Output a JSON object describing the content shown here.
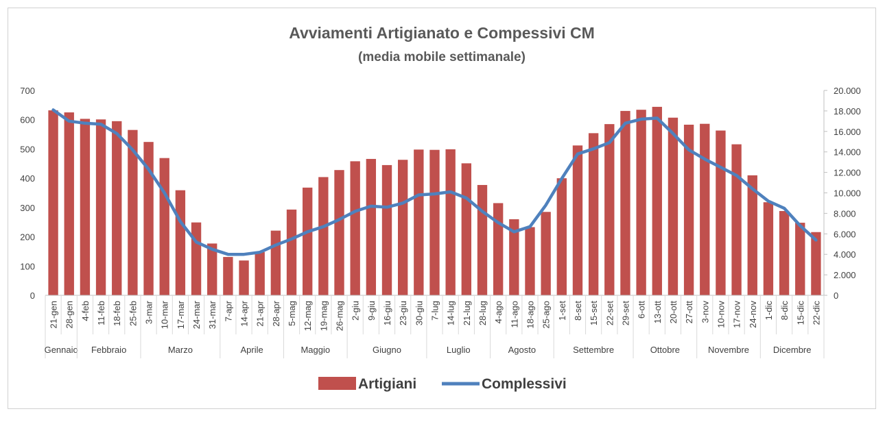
{
  "chart_data": {
    "type": "bar+line",
    "title": "Avviamenti Artigianato e Compessivi CM",
    "subtitle": "(media mobile settimanale)",
    "categories": [
      "21-gen",
      "28-gen",
      "4-feb",
      "11-feb",
      "18-feb",
      "25-feb",
      "3-mar",
      "10-mar",
      "17-mar",
      "24-mar",
      "31-mar",
      "7-apr",
      "14-apr",
      "21-apr",
      "28-apr",
      "5-mag",
      "12-mag",
      "19-mag",
      "26-mag",
      "2-giu",
      "9-giu",
      "16-giu",
      "23-giu",
      "30-giu",
      "7-lug",
      "14-lug",
      "21-lug",
      "28-lug",
      "4-ago",
      "11-ago",
      "18-ago",
      "25-ago",
      "1-set",
      "8-set",
      "15-set",
      "22-set",
      "29-set",
      "6-ott",
      "13-ott",
      "20-ott",
      "27-ott",
      "3-nov",
      "10-nov",
      "17-nov",
      "24-nov",
      "1-dic",
      "8-dic",
      "15-dic",
      "22-dic"
    ],
    "months": [
      {
        "name": "Gennaio",
        "start": 0,
        "end": 1
      },
      {
        "name": "Febbraio",
        "start": 2,
        "end": 5
      },
      {
        "name": "Marzo",
        "start": 6,
        "end": 10
      },
      {
        "name": "Aprile",
        "start": 11,
        "end": 14
      },
      {
        "name": "Maggio",
        "start": 15,
        "end": 18
      },
      {
        "name": "Giugno",
        "start": 19,
        "end": 23
      },
      {
        "name": "Luglio",
        "start": 24,
        "end": 27
      },
      {
        "name": "Agosto",
        "start": 28,
        "end": 31
      },
      {
        "name": "Settembre",
        "start": 32,
        "end": 36
      },
      {
        "name": "Ottobre",
        "start": 37,
        "end": 40
      },
      {
        "name": "Novembre",
        "start": 41,
        "end": 44
      },
      {
        "name": "Dicembre",
        "start": 45,
        "end": 48
      }
    ],
    "series": [
      {
        "name": "Artigiani",
        "type": "bar",
        "axis": "left",
        "color": "#C0504D",
        "values": [
          632,
          625,
          603,
          601,
          595,
          565,
          524,
          469,
          359,
          249,
          177,
          131,
          119,
          148,
          221,
          293,
          368,
          404,
          428,
          458,
          466,
          445,
          463,
          498,
          497,
          499,
          451,
          377,
          315,
          260,
          233,
          285,
          400,
          512,
          554,
          585,
          630,
          634,
          644,
          607,
          583,
          586,
          563,
          516,
          410,
          318,
          288,
          248,
          216
        ]
      },
      {
        "name": "Complessivi",
        "type": "line",
        "axis": "right",
        "color": "#4F81BD",
        "values": [
          18100,
          17000,
          16800,
          16700,
          15800,
          14200,
          12300,
          10000,
          7200,
          5200,
          4500,
          4000,
          4000,
          4200,
          4900,
          5500,
          6200,
          6700,
          7400,
          8200,
          8700,
          8600,
          9000,
          9800,
          9900,
          10100,
          9500,
          8200,
          7100,
          6200,
          6700,
          8800,
          11400,
          13800,
          14300,
          14900,
          16800,
          17200,
          17300,
          15800,
          14200,
          13300,
          12500,
          11700,
          10400,
          9200,
          8500,
          6800,
          5400
        ]
      }
    ],
    "y_left": {
      "min": 0,
      "max": 700,
      "ticks": [
        "0",
        "100",
        "200",
        "300",
        "400",
        "500",
        "600",
        "700"
      ]
    },
    "y_right": {
      "min": 0,
      "max": 20000,
      "ticks": [
        "0",
        "2.000",
        "4.000",
        "6.000",
        "8.000",
        "10.000",
        "12.000",
        "14.000",
        "16.000",
        "18.000",
        "20.000"
      ]
    },
    "legend": {
      "position": "bottom",
      "items": [
        "Artigiani",
        "Complessivi"
      ]
    }
  }
}
